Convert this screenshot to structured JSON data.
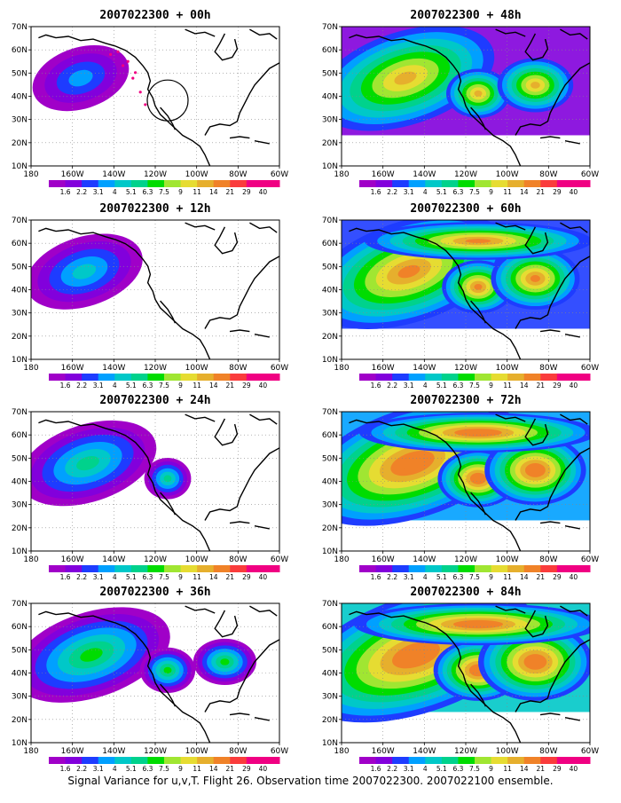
{
  "panels": [
    {
      "id": "00",
      "title": "2007022300 + 00h",
      "level": 0,
      "extra_circle": true,
      "dotted_path": true
    },
    {
      "id": "12",
      "title": "2007022300 + 12h",
      "level": 1,
      "extra_circle": false,
      "dotted_path": false
    },
    {
      "id": "24",
      "title": "2007022300 + 24h",
      "level": 2,
      "extra_circle": false,
      "dotted_path": false
    },
    {
      "id": "36",
      "title": "2007022300 + 36h",
      "level": 3,
      "extra_circle": false,
      "dotted_path": false
    },
    {
      "id": "48",
      "title": "2007022300 + 48h",
      "level": 4,
      "extra_circle": false,
      "dotted_path": false
    },
    {
      "id": "60",
      "title": "2007022300 + 60h",
      "level": 5,
      "extra_circle": false,
      "dotted_path": false
    },
    {
      "id": "72",
      "title": "2007022300 + 72h",
      "level": 6,
      "extra_circle": false,
      "dotted_path": false
    },
    {
      "id": "84",
      "title": "2007022300 + 84h",
      "level": 7,
      "extra_circle": false,
      "dotted_path": false
    }
  ],
  "lat_ticks": [
    "10N",
    "20N",
    "30N",
    "40N",
    "50N",
    "60N",
    "70N"
  ],
  "lon_ticks": [
    "180",
    "160W",
    "140W",
    "120W",
    "100W",
    "80W",
    "60W"
  ],
  "colorbar": {
    "labels": [
      "1.6",
      "2.2",
      "3.1",
      "4",
      "5.1",
      "6.3",
      "7.5",
      "9",
      "11",
      "14",
      "21",
      "29",
      "40"
    ],
    "colors": [
      "#a000c8",
      "#8200dc",
      "#1e3cff",
      "#00a0ff",
      "#00c8c8",
      "#00d28c",
      "#00dc00",
      "#a0e632",
      "#e6dc32",
      "#e6af2d",
      "#f08228",
      "#fa3c3c",
      "#f00082"
    ]
  },
  "caption": "Signal Variance for u,v,T. Flight 26. Observation time 2007022300. 2007022100 ensemble."
}
